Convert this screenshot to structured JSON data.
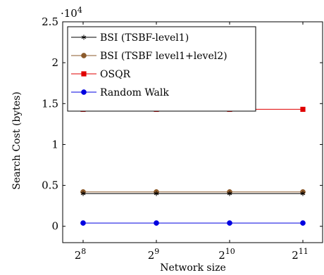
{
  "chart_data": {
    "type": "line",
    "xlabel": "Network size",
    "ylabel": "Search Cost (bytes)",
    "y_multiplier_label": "·10",
    "y_multiplier_exp": "4",
    "categories": [
      {
        "base": "2",
        "exp": "8"
      },
      {
        "base": "2",
        "exp": "9"
      },
      {
        "base": "2",
        "exp": "10"
      },
      {
        "base": "2",
        "exp": "11"
      }
    ],
    "yticks": [
      {
        "value": 0,
        "label": "0"
      },
      {
        "value": 5000,
        "label": "0.5"
      },
      {
        "value": 10000,
        "label": "1"
      },
      {
        "value": 15000,
        "label": "1.5"
      },
      {
        "value": 20000,
        "label": "2"
      },
      {
        "value": 25000,
        "label": "2.5"
      }
    ],
    "ylim": [
      -2000,
      25000
    ],
    "legend_position": "top-left",
    "grid": false,
    "series": [
      {
        "name": "BSI (TSBF-level1)",
        "color": "#000000",
        "marker": "star",
        "values": [
          4000,
          4000,
          4000,
          4000
        ]
      },
      {
        "name": "BSI (TSBF level1+level2)",
        "color": "#8b5a2b",
        "marker": "circle",
        "values": [
          4200,
          4200,
          4200,
          4200
        ]
      },
      {
        "name": "OSQR",
        "color": "#e00000",
        "marker": "square",
        "values": [
          14300,
          14300,
          14300,
          14300
        ]
      },
      {
        "name": "Random Walk",
        "color": "#0000e0",
        "marker": "circle",
        "values": [
          400,
          400,
          400,
          400
        ]
      }
    ]
  }
}
